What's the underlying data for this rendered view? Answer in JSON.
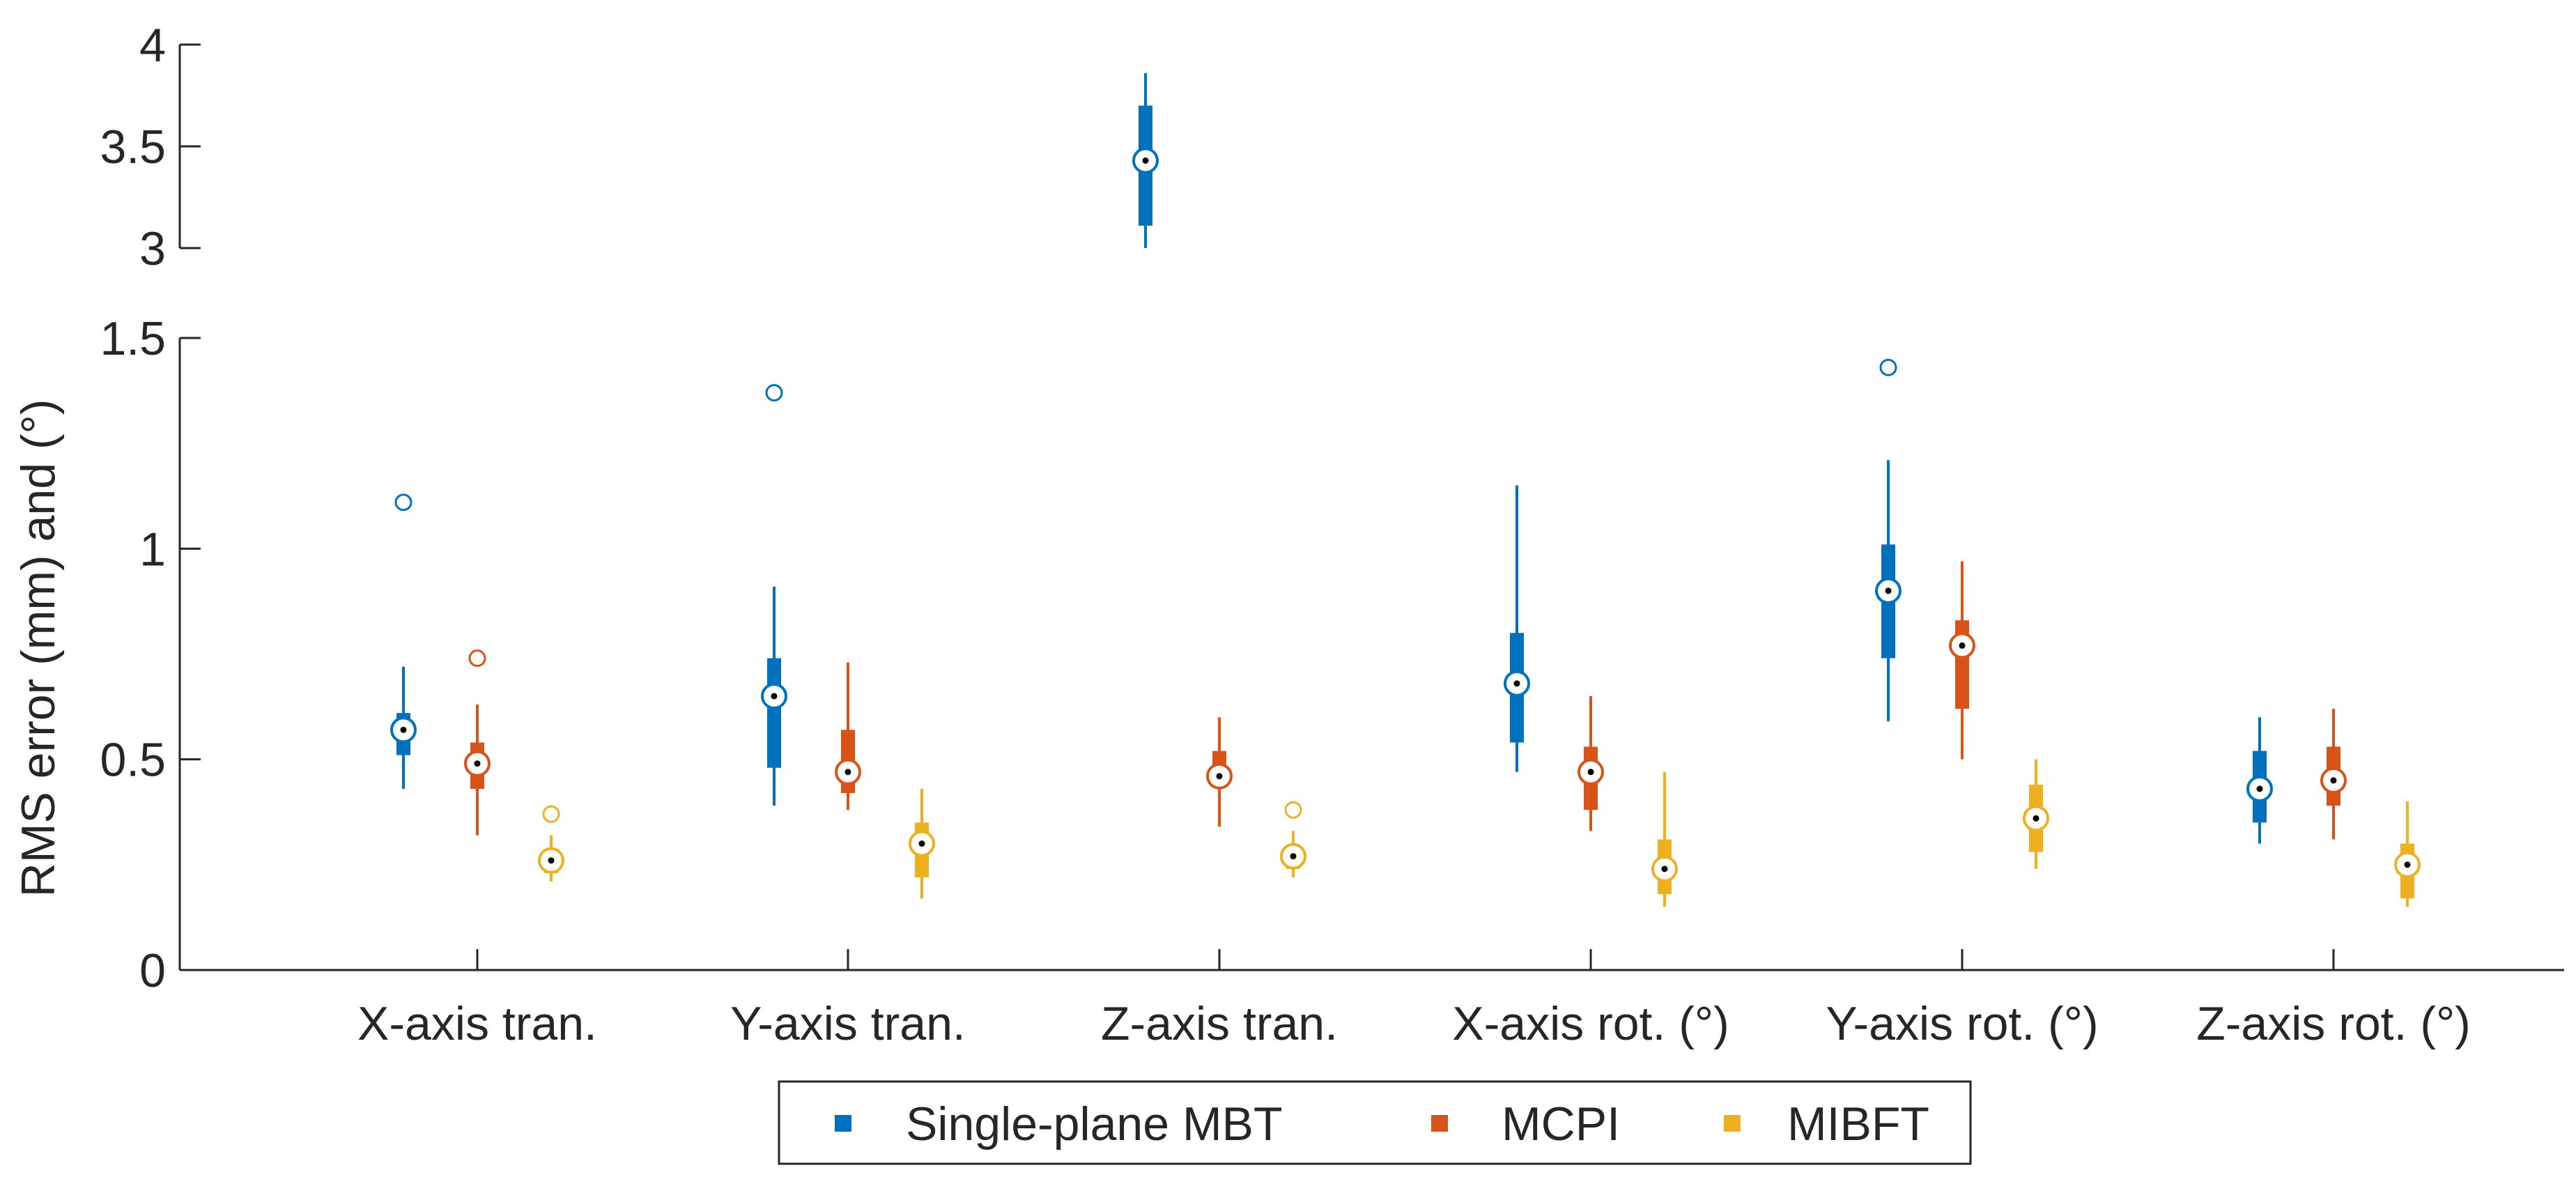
{
  "chart_data": {
    "type": "box",
    "title": "",
    "xlabel": "",
    "ylabel": "RMS error (mm) and (°)",
    "categories": [
      "X-axis tran.",
      "Y-axis tran.",
      "Z-axis tran.",
      "X-axis rot. (°)",
      "Y-axis rot. (°)",
      "Z-axis rot. (°)"
    ],
    "axis_break": {
      "lower_range": [
        0,
        1.5
      ],
      "upper_range": [
        3,
        4
      ]
    },
    "y_ticks_lower": [
      "0",
      "0.5",
      "1",
      "1.5"
    ],
    "y_ticks_upper": [
      "3",
      "3.5",
      "4"
    ],
    "legend": {
      "placement": "bottom-center",
      "entries": [
        "Single-plane MBT",
        "MCPI",
        "MIBFT"
      ]
    },
    "series": [
      {
        "name": "Single-plane MBT",
        "color": "#0072BD",
        "boxes": [
          {
            "category": "X-axis tran.",
            "whisker_low": 0.43,
            "q1": 0.51,
            "median": 0.57,
            "q3": 0.61,
            "whisker_high": 0.72,
            "outliers": [
              1.11
            ]
          },
          {
            "category": "Y-axis tran.",
            "whisker_low": 0.39,
            "q1": 0.48,
            "median": 0.65,
            "q3": 0.74,
            "whisker_high": 0.91,
            "outliers": [
              1.37
            ]
          },
          {
            "category": "Z-axis tran.",
            "whisker_low": 3.0,
            "q1": 3.11,
            "median": 3.43,
            "q3": 3.7,
            "whisker_high": 3.86,
            "outliers": []
          },
          {
            "category": "X-axis rot. (°)",
            "whisker_low": 0.47,
            "q1": 0.54,
            "median": 0.68,
            "q3": 0.8,
            "whisker_high": 1.15,
            "outliers": []
          },
          {
            "category": "Y-axis rot. (°)",
            "whisker_low": 0.59,
            "q1": 0.74,
            "median": 0.9,
            "q3": 1.01,
            "whisker_high": 1.21,
            "outliers": [
              1.43
            ]
          },
          {
            "category": "Z-axis rot. (°)",
            "whisker_low": 0.3,
            "q1": 0.35,
            "median": 0.43,
            "q3": 0.52,
            "whisker_high": 0.6,
            "outliers": []
          }
        ]
      },
      {
        "name": "MCPI",
        "color": "#D95319",
        "boxes": [
          {
            "category": "X-axis tran.",
            "whisker_low": 0.32,
            "q1": 0.43,
            "median": 0.49,
            "q3": 0.54,
            "whisker_high": 0.63,
            "outliers": [
              0.74
            ]
          },
          {
            "category": "Y-axis tran.",
            "whisker_low": 0.38,
            "q1": 0.42,
            "median": 0.47,
            "q3": 0.57,
            "whisker_high": 0.73,
            "outliers": []
          },
          {
            "category": "Z-axis tran.",
            "whisker_low": 0.34,
            "q1": 0.44,
            "median": 0.46,
            "q3": 0.52,
            "whisker_high": 0.6,
            "outliers": []
          },
          {
            "category": "X-axis rot. (°)",
            "whisker_low": 0.33,
            "q1": 0.38,
            "median": 0.47,
            "q3": 0.53,
            "whisker_high": 0.65,
            "outliers": []
          },
          {
            "category": "Y-axis rot. (°)",
            "whisker_low": 0.5,
            "q1": 0.62,
            "median": 0.77,
            "q3": 0.83,
            "whisker_high": 0.97,
            "outliers": []
          },
          {
            "category": "Z-axis rot. (°)",
            "whisker_low": 0.31,
            "q1": 0.39,
            "median": 0.45,
            "q3": 0.53,
            "whisker_high": 0.62,
            "outliers": []
          }
        ]
      },
      {
        "name": "MIBFT",
        "color": "#EDB120",
        "boxes": [
          {
            "category": "X-axis tran.",
            "whisker_low": 0.21,
            "q1": 0.23,
            "median": 0.26,
            "q3": 0.27,
            "whisker_high": 0.32,
            "outliers": [
              0.37
            ]
          },
          {
            "category": "Y-axis tran.",
            "whisker_low": 0.17,
            "q1": 0.22,
            "median": 0.3,
            "q3": 0.35,
            "whisker_high": 0.43,
            "outliers": []
          },
          {
            "category": "Z-axis tran.",
            "whisker_low": 0.22,
            "q1": 0.24,
            "median": 0.27,
            "q3": 0.29,
            "whisker_high": 0.33,
            "outliers": [
              0.38
            ]
          },
          {
            "category": "X-axis rot. (°)",
            "whisker_low": 0.15,
            "q1": 0.18,
            "median": 0.24,
            "q3": 0.31,
            "whisker_high": 0.47,
            "outliers": []
          },
          {
            "category": "Y-axis rot. (°)",
            "whisker_low": 0.24,
            "q1": 0.28,
            "median": 0.36,
            "q3": 0.44,
            "whisker_high": 0.5,
            "outliers": []
          },
          {
            "category": "Z-axis rot. (°)",
            "whisker_low": 0.15,
            "q1": 0.17,
            "median": 0.25,
            "q3": 0.3,
            "whisker_high": 0.4,
            "outliers": []
          }
        ]
      }
    ]
  }
}
